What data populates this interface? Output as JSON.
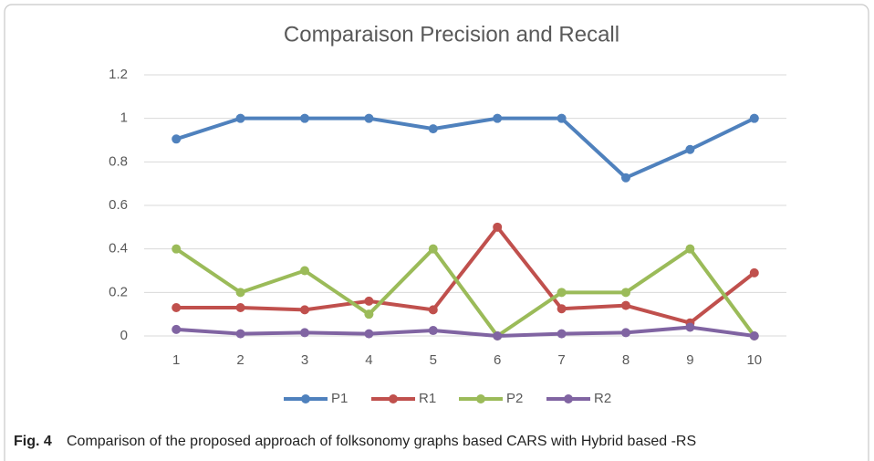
{
  "chart_data": {
    "type": "line",
    "title": "Comparaison Precision and Recall",
    "categories": [
      "1",
      "2",
      "3",
      "4",
      "5",
      "6",
      "7",
      "8",
      "9",
      "10"
    ],
    "series": [
      {
        "name": "P1",
        "color": "#4f81bd",
        "values": [
          0.905,
          1,
          1,
          1,
          0.952,
          1,
          1,
          0.727,
          0.857,
          1
        ]
      },
      {
        "name": "R1",
        "color": "#c0504d",
        "values": [
          0.13,
          0.13,
          0.12,
          0.16,
          0.12,
          0.5,
          0.125,
          0.14,
          0.06,
          0.29
        ]
      },
      {
        "name": "P2",
        "color": "#9bbb59",
        "values": [
          0.4,
          0.2,
          0.3,
          0.1,
          0.4,
          0,
          0.2,
          0.2,
          0.4,
          0
        ]
      },
      {
        "name": "R2",
        "color": "#8064a2",
        "values": [
          0.03,
          0.01,
          0.015,
          0.01,
          0.025,
          0,
          0.01,
          0.015,
          0.04,
          0
        ]
      }
    ],
    "ylim": [
      0,
      1.2
    ],
    "yticks": [
      0,
      0.2,
      0.4,
      0.6,
      0.8,
      1,
      1.2
    ],
    "grid": true,
    "legend": "bottom"
  },
  "caption": {
    "label": "Fig. 4",
    "text": "Comparison of the proposed approach of folksonomy graphs based CARS with Hybrid based -RS"
  }
}
